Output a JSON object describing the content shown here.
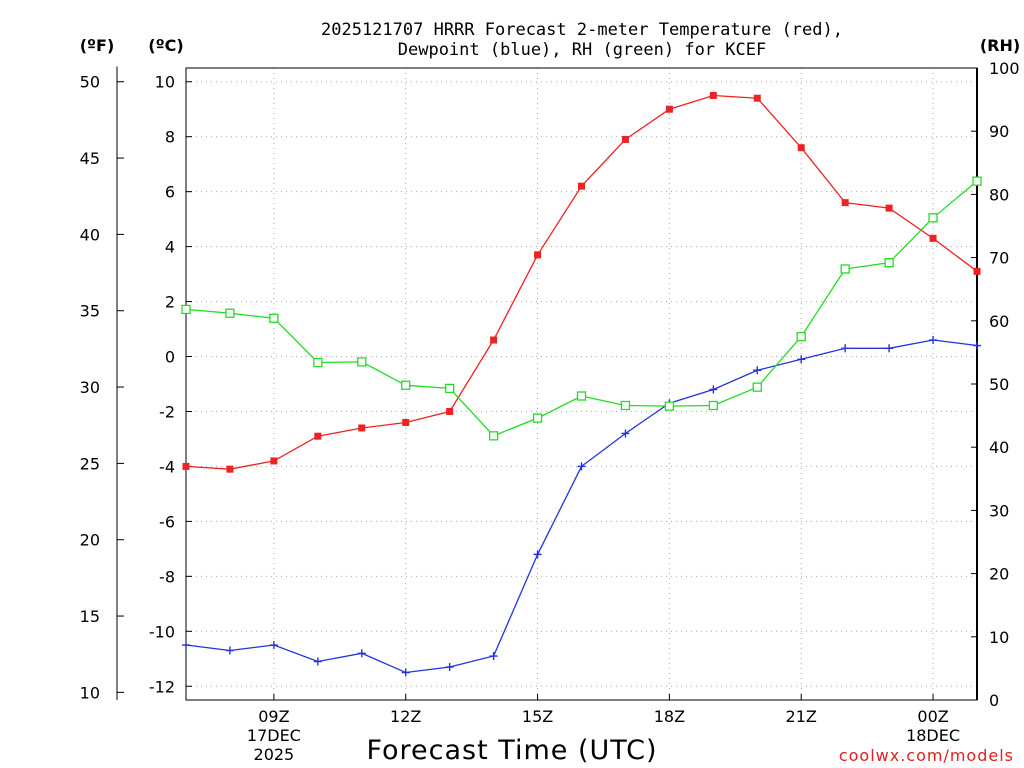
{
  "chart_data": {
    "type": "line",
    "title_line1": "2025121707 HRRR Forecast 2-meter Temperature (red),",
    "title_line2": "Dewpoint (blue), RH (green) for KCEF",
    "xlabel": "Forecast Time (UTC)",
    "credit": "coolwx.com/models",
    "units": {
      "fahrenheit": "(ºF)",
      "celsius": "(ºC)",
      "rh": "(RH)"
    },
    "x_hours": [
      7,
      8,
      9,
      10,
      11,
      12,
      13,
      14,
      15,
      16,
      17,
      18,
      19,
      20,
      21,
      22,
      23,
      24,
      25
    ],
    "x_range": [
      7,
      25
    ],
    "x_ticks": [
      {
        "hour": 9,
        "lines": [
          "09Z",
          "17DEC",
          "2025"
        ]
      },
      {
        "hour": 12,
        "lines": [
          "12Z"
        ]
      },
      {
        "hour": 15,
        "lines": [
          "15Z"
        ]
      },
      {
        "hour": 18,
        "lines": [
          "18Z"
        ]
      },
      {
        "hour": 21,
        "lines": [
          "21Z"
        ]
      },
      {
        "hour": 24,
        "lines": [
          "00Z",
          "18DEC"
        ]
      }
    ],
    "celsius_axis": {
      "range": [
        -12.5,
        10.5
      ],
      "ticks": [
        10,
        8,
        6,
        4,
        2,
        0,
        -2,
        -4,
        -6,
        -8,
        -10,
        -12
      ]
    },
    "fahrenheit_ticks": [
      50,
      45,
      40,
      35,
      30,
      25,
      20,
      15,
      10
    ],
    "rh_axis": {
      "range": [
        0,
        100
      ],
      "ticks": [
        100,
        90,
        80,
        70,
        60,
        50,
        40,
        30,
        20,
        10,
        0
      ]
    },
    "series": [
      {
        "name": "Temperature",
        "unit": "C",
        "color": "#ee2222",
        "marker": "filled-square",
        "values": [
          -4.0,
          -4.1,
          -3.8,
          -2.9,
          -2.6,
          -2.4,
          -2.0,
          0.6,
          3.7,
          6.2,
          7.9,
          9.0,
          9.5,
          9.4,
          7.6,
          5.6,
          5.4,
          4.3,
          3.1
        ]
      },
      {
        "name": "Dewpoint",
        "unit": "C",
        "color": "#2233dd",
        "marker": "plus",
        "values": [
          -10.5,
          -10.7,
          -10.5,
          -11.1,
          -10.8,
          -11.5,
          -11.3,
          -10.9,
          -7.2,
          -4.0,
          -2.8,
          -1.7,
          -1.2,
          -0.5,
          -0.1,
          0.3,
          0.3,
          0.6,
          0.4
        ]
      },
      {
        "name": "RH",
        "unit": "%",
        "color": "#22dd22",
        "marker": "open-square",
        "values": [
          61.8,
          61.2,
          60.4,
          53.4,
          53.5,
          49.8,
          49.3,
          41.8,
          44.6,
          48.1,
          46.6,
          46.5,
          46.6,
          49.5,
          57.5,
          68.2,
          69.2,
          76.3,
          82.1
        ]
      }
    ]
  }
}
